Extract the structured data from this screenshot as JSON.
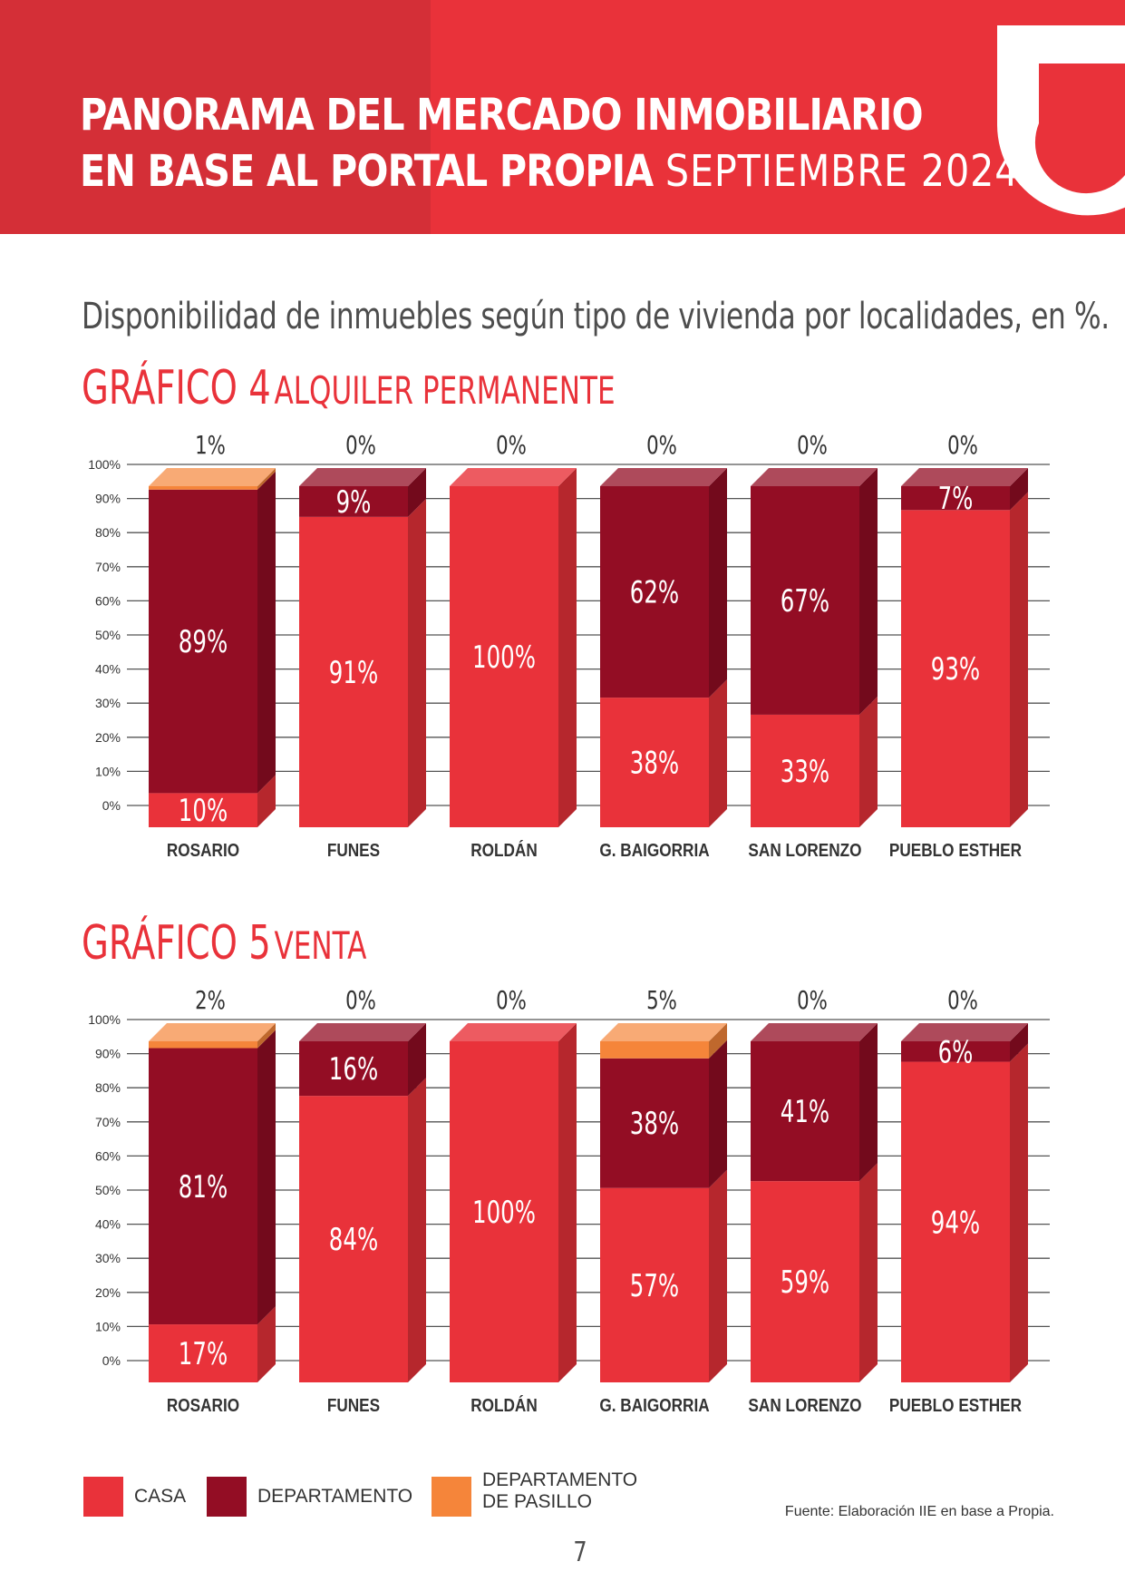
{
  "header": {
    "title_line1": "PANORAMA DEL MERCADO INMOBILIARIO",
    "title_line2": "EN BASE AL PORTAL PROPIA",
    "title_period": "SEPTIEMBRE 2024",
    "logo": "propia-u-logo-icon"
  },
  "subtitle": "Disponibilidad de inmuebles según tipo de vivienda por localidades, en %.",
  "colors": {
    "casa": "#e9323a",
    "departamento": "#930d24",
    "pasillo": "#f5853a"
  },
  "chart_data": [
    {
      "type": "bar",
      "stacked": true,
      "title_prefix": "GRÁFICO 4",
      "title_suffix": "ALQUILER PERMANENTE",
      "categories": [
        "ROSARIO",
        "FUNES",
        "ROLDÁN",
        "G. BAIGORRIA",
        "SAN LORENZO",
        "PUEBLO ESTHER"
      ],
      "y_ticks": [
        "0%",
        "10%",
        "20%",
        "30%",
        "40%",
        "50%",
        "60%",
        "70%",
        "80%",
        "90%",
        "100%"
      ],
      "ylim": [
        0,
        100
      ],
      "series": [
        {
          "name": "CASA",
          "values": [
            10,
            91,
            100,
            38,
            33,
            93
          ],
          "labels": [
            "10%",
            "91%",
            "100%",
            "38%",
            "33%",
            "93%"
          ]
        },
        {
          "name": "DEPARTAMENTO",
          "values": [
            89,
            9,
            0,
            62,
            67,
            7
          ],
          "labels": [
            "89%",
            "9%",
            "",
            "62%",
            "67%",
            "7%"
          ]
        },
        {
          "name": "DEPARTAMENTO DE PASILLO",
          "values": [
            1,
            0,
            0,
            0,
            0,
            0
          ],
          "labels": [
            "1%",
            "0%",
            "0%",
            "0%",
            "0%",
            "0%"
          ]
        }
      ]
    },
    {
      "type": "bar",
      "stacked": true,
      "title_prefix": "GRÁFICO 5",
      "title_suffix": "VENTA",
      "categories": [
        "ROSARIO",
        "FUNES",
        "ROLDÁN",
        "G. BAIGORRIA",
        "SAN LORENZO",
        "PUEBLO ESTHER"
      ],
      "y_ticks": [
        "0%",
        "10%",
        "20%",
        "30%",
        "40%",
        "50%",
        "60%",
        "70%",
        "80%",
        "90%",
        "100%"
      ],
      "ylim": [
        0,
        100
      ],
      "series": [
        {
          "name": "CASA",
          "values": [
            17,
            84,
            100,
            57,
            59,
            94
          ],
          "labels": [
            "17%",
            "84%",
            "100%",
            "57%",
            "59%",
            "94%"
          ]
        },
        {
          "name": "DEPARTAMENTO",
          "values": [
            81,
            16,
            0,
            38,
            41,
            6
          ],
          "labels": [
            "81%",
            "16%",
            "",
            "38%",
            "41%",
            "6%"
          ]
        },
        {
          "name": "DEPARTAMENTO DE PASILLO",
          "values": [
            2,
            0,
            0,
            5,
            0,
            0
          ],
          "labels": [
            "2%",
            "0%",
            "0%",
            "5%",
            "0%",
            "0%"
          ]
        }
      ]
    }
  ],
  "legend": {
    "casa": "CASA",
    "departamento": "DEPARTAMENTO",
    "pasillo_line1": "DEPARTAMENTO",
    "pasillo_line2": "DE PASILLO"
  },
  "source": "Fuente: Elaboración IIE en base a Propia.",
  "page_number": "7"
}
